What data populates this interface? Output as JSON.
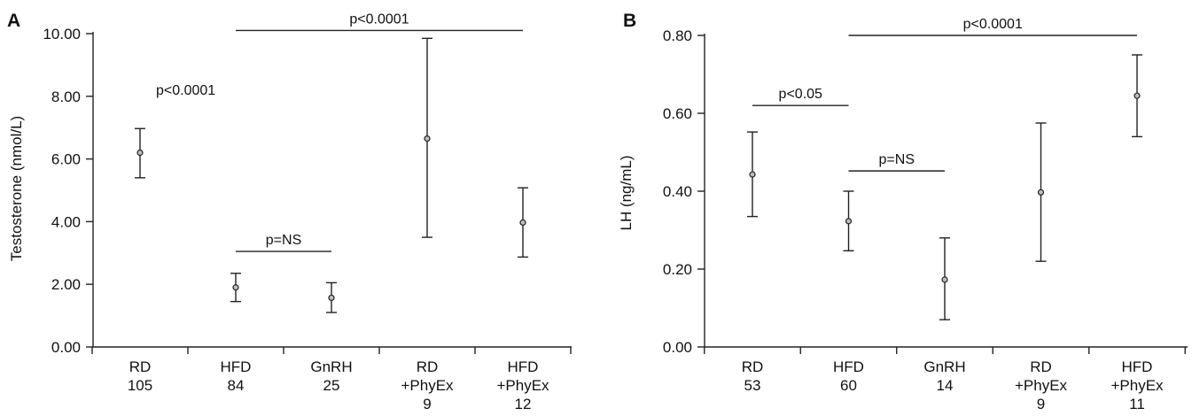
{
  "chart_data": [
    {
      "panel": "A",
      "type": "scatter",
      "ylabel": "Testosterone (nmol/L)",
      "ylim": [
        0,
        10
      ],
      "yticks": [
        "0.00",
        "2.00",
        "4.00",
        "6.00",
        "8.00",
        "10.00"
      ],
      "categories": [
        {
          "lines": [
            "RD",
            "105"
          ]
        },
        {
          "lines": [
            "HFD",
            "84"
          ]
        },
        {
          "lines": [
            "GnRH",
            "25"
          ]
        },
        {
          "lines": [
            "RD",
            "+PhyEx",
            "9"
          ]
        },
        {
          "lines": [
            "HFD",
            "+PhyEx",
            "12"
          ]
        }
      ],
      "points": [
        {
          "mean": 6.2,
          "low": 5.4,
          "high": 6.97
        },
        {
          "mean": 1.9,
          "low": 1.45,
          "high": 2.35
        },
        {
          "mean": 1.57,
          "low": 1.1,
          "high": 2.05
        },
        {
          "mean": 6.65,
          "low": 3.5,
          "high": 9.85
        },
        {
          "mean": 3.97,
          "low": 2.87,
          "high": 5.08
        }
      ],
      "annotations": [
        {
          "label": "p<0.0001",
          "from": 1,
          "to": 4,
          "y": 10.1,
          "line": true
        },
        {
          "label": "p=NS",
          "from": 1,
          "to": 2,
          "y": 3.05,
          "line": true
        },
        {
          "label": "p<0.0001",
          "from": 0,
          "to": 0,
          "y": 8.0,
          "line": false
        }
      ]
    },
    {
      "panel": "B",
      "type": "scatter",
      "ylabel": "LH (ng/mL)",
      "ylim": [
        0,
        0.8
      ],
      "yticks": [
        "0.00",
        "0.20",
        "0.40",
        "0.60",
        "0.80"
      ],
      "categories": [
        {
          "lines": [
            "RD",
            "53"
          ]
        },
        {
          "lines": [
            "HFD",
            "60"
          ]
        },
        {
          "lines": [
            "GnRH",
            "14"
          ]
        },
        {
          "lines": [
            "RD",
            "+PhyEx",
            "9"
          ]
        },
        {
          "lines": [
            "HFD",
            "+PhyEx",
            "11"
          ]
        }
      ],
      "points": [
        {
          "mean": 0.443,
          "low": 0.335,
          "high": 0.552
        },
        {
          "mean": 0.323,
          "low": 0.247,
          "high": 0.4
        },
        {
          "mean": 0.173,
          "low": 0.07,
          "high": 0.28
        },
        {
          "mean": 0.397,
          "low": 0.22,
          "high": 0.575
        },
        {
          "mean": 0.645,
          "low": 0.54,
          "high": 0.75
        }
      ],
      "annotations": [
        {
          "label": "p<0.0001",
          "from": 1,
          "to": 4,
          "y": 0.8,
          "line": true
        },
        {
          "label": "p<0.05",
          "from": 0,
          "to": 1,
          "y": 0.62,
          "line": true
        },
        {
          "label": "p=NS",
          "from": 1,
          "to": 2,
          "y": 0.452,
          "line": true
        }
      ]
    }
  ]
}
